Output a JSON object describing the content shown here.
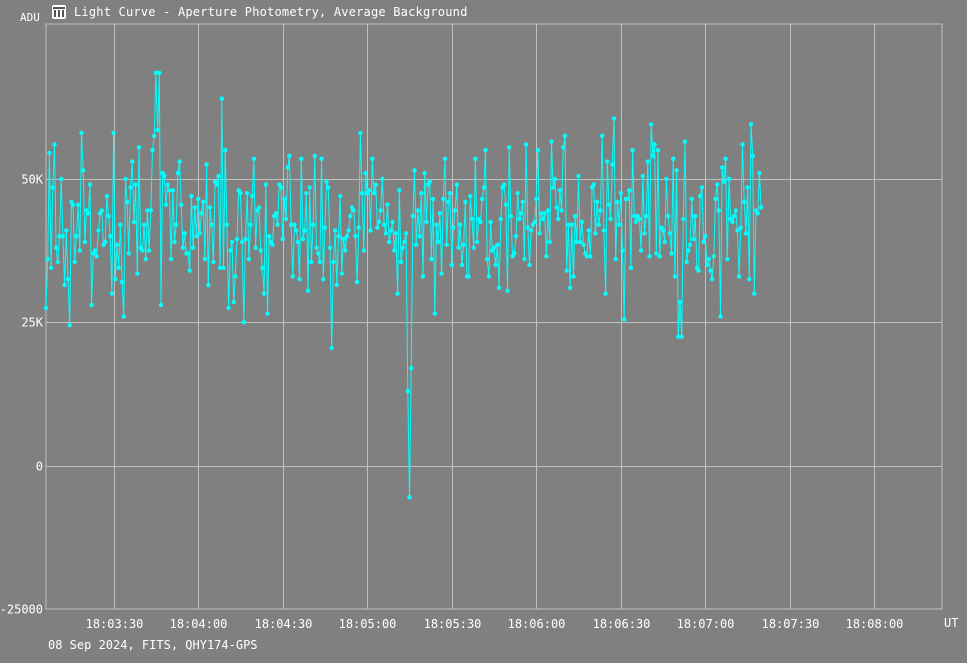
{
  "window": {
    "title": "Light Curve - Aperture Photometry, Average Background",
    "icon": "light-curve-app-icon"
  },
  "footer": {
    "text": "08 Sep 2024, FITS, QHY174-GPS"
  },
  "colors": {
    "background": "#808080",
    "series": "#00ffff",
    "grid": "#c0c0c0",
    "text": "#ffffff"
  },
  "chart_data": {
    "type": "line",
    "title": "Light Curve - Aperture Photometry, Average Background",
    "xlabel": "UT",
    "ylabel": "ADU",
    "x_range": [
      "18:03:06",
      "18:08:24"
    ],
    "ylim": [
      -25000,
      77000
    ],
    "y_ticks": [
      {
        "value": 50000,
        "label": "50K"
      },
      {
        "value": 25000,
        "label": "25K"
      },
      {
        "value": 0,
        "label": "0"
      },
      {
        "value": -25000,
        "label": "-25000"
      }
    ],
    "x_ticks": [
      {
        "value": "18:03:30",
        "label": "18:03:30"
      },
      {
        "value": "18:04:00",
        "label": "18:04:00"
      },
      {
        "value": "18:04:30",
        "label": "18:04:30"
      },
      {
        "value": "18:05:00",
        "label": "18:05:00"
      },
      {
        "value": "18:05:30",
        "label": "18:05:30"
      },
      {
        "value": "18:06:00",
        "label": "18:06:00"
      },
      {
        "value": "18:06:30",
        "label": "18:06:30"
      },
      {
        "value": "18:07:00",
        "label": "18:07:00"
      },
      {
        "value": "18:07:30",
        "label": "18:07:30"
      },
      {
        "value": "18:08:00",
        "label": "18:08:00"
      }
    ],
    "x_grid_extra": [
      "18:03:00"
    ],
    "grid": true,
    "marker": "circle",
    "series": [
      {
        "x_start": "18:03:06",
        "x_step_seconds": 0.6,
        "values": [
          27500,
          36000,
          54500,
          34500,
          48500,
          56000,
          38000,
          35500,
          40000,
          50000,
          40000,
          31500,
          41000,
          32500,
          24500,
          46000,
          45500,
          35500,
          40000,
          45500,
          37500,
          58000,
          51500,
          39000,
          44500,
          44000,
          49000,
          28000,
          37000,
          37500,
          36500,
          41000,
          44000,
          44500,
          38500,
          39000,
          47000,
          43500,
          40000,
          30000,
          58000,
          32500,
          38500,
          34500,
          42000,
          32000,
          26000,
          50000,
          46000,
          37000,
          48500,
          53000,
          42500,
          49000,
          33500,
          55500,
          38000,
          37500,
          42000,
          36000,
          44500,
          37500,
          44500,
          55000,
          57500,
          68500,
          58500,
          68500,
          28000,
          51000,
          50500,
          45500,
          49000,
          48000,
          36000,
          48000,
          39000,
          42000,
          51000,
          53000,
          45500,
          38000,
          40500,
          37000,
          37000,
          34000,
          47000,
          38000,
          45000,
          40000,
          46500,
          40500,
          44000,
          46000,
          36000,
          52500,
          31500,
          45000,
          42000,
          35500,
          49500,
          49000,
          50500,
          34500,
          64000,
          34500,
          55000,
          42000,
          27500,
          37500,
          39000,
          28500,
          33000,
          39500,
          48000,
          47500,
          39000,
          25000,
          39500,
          47500,
          36000,
          42000,
          47000,
          53500,
          38000,
          44500,
          45000,
          37500,
          34500,
          30000,
          49000,
          26500,
          40000,
          39000,
          38500,
          43500,
          44000,
          42000,
          49000,
          48500,
          39500,
          46500,
          43000,
          52000,
          54000,
          42000,
          33000,
          42000,
          41000,
          39000,
          32500,
          53500,
          39500,
          41000,
          47500,
          30500,
          48500,
          35500,
          42000,
          54000,
          38000,
          37000,
          35500,
          53500,
          32500,
          41500,
          49500,
          48500,
          38000,
          20500,
          35500,
          41000,
          31500,
          40000,
          47000,
          33500,
          39500,
          37500,
          40000,
          41000,
          43500,
          45000,
          44500,
          40000,
          32000,
          41500,
          58000,
          47500,
          37500,
          51000,
          47500,
          48000,
          41000,
          53500,
          47500,
          49000,
          41500,
          42500,
          44500,
          50000,
          42000,
          40500,
          45500,
          39000,
          41000,
          42500,
          37500,
          40500,
          30000,
          48000,
          35500,
          38000,
          39000,
          40500,
          13000,
          -5500,
          17000,
          43500,
          51500,
          38500,
          44500,
          40000,
          47500,
          33000,
          51000,
          42500,
          49000,
          49500,
          36000,
          46500,
          26500,
          42000,
          39000,
          44000,
          33500,
          46500,
          53500,
          38500,
          46000,
          47500,
          35000,
          41500,
          44500,
          49000,
          38000,
          42000,
          35000,
          38500,
          46000,
          33000,
          33000,
          47000,
          43000,
          38000,
          53500,
          39000,
          43000,
          42500,
          46500,
          48500,
          55000,
          36000,
          33000,
          42500,
          37500,
          38000,
          35000,
          38500,
          31000,
          43000,
          48500,
          49000,
          45500,
          30500,
          55500,
          43500,
          36500,
          37000,
          40000,
          47500,
          43000,
          44000,
          46000,
          36000,
          56000,
          41500,
          35000,
          41000,
          42000,
          42500,
          46500,
          55000,
          40500,
          44000,
          43000,
          44000,
          36500,
          44500,
          39000,
          56500,
          48500,
          50000,
          45000,
          43000,
          48000,
          44500,
          55500,
          57500,
          34000,
          42000,
          31000,
          42000,
          33000,
          43500,
          39000,
          50500,
          39000,
          42500,
          38500,
          37000,
          36500,
          41000,
          36500,
          48500,
          49000,
          40500,
          46000,
          42000,
          44500,
          57500,
          41000,
          30000,
          53000,
          45500,
          43000,
          52500,
          60500,
          36000,
          46000,
          42000,
          47500,
          37500,
          25500,
          46500,
          46500,
          48000,
          34500,
          55000,
          43500,
          42500,
          43500,
          43000,
          37500,
          50500,
          40500,
          43500,
          53000,
          36500,
          59500,
          54000,
          56000,
          37000,
          55000,
          36500,
          41500,
          41000,
          39000,
          50000,
          43500,
          40500,
          37000,
          53500,
          33000,
          51500,
          22500,
          28500,
          22500,
          43000,
          56500,
          35500,
          37500,
          38500,
          46500,
          39500,
          43500,
          34500,
          34000,
          47000,
          48500,
          39000,
          40000,
          35000,
          36000,
          34000,
          32500,
          36500,
          46500,
          49000,
          44500,
          26000,
          52000,
          49500,
          53500,
          36000,
          50000,
          43000,
          42500,
          43500,
          44500,
          41000,
          33000,
          41500,
          56000,
          46000,
          40500,
          48500,
          32500,
          59500,
          54000,
          30000,
          44500,
          44000,
          51000,
          45000
        ]
      }
    ]
  },
  "icons": {
    "window": "light-curve-app-icon"
  }
}
